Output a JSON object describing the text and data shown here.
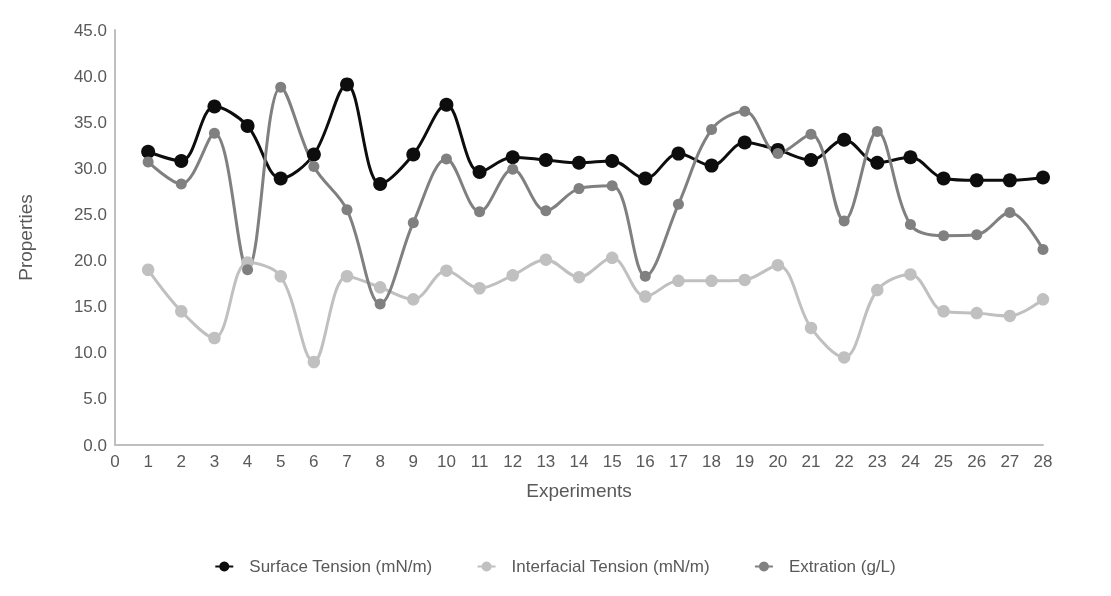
{
  "chart_data": {
    "type": "line",
    "xlabel": "Experiments",
    "ylabel": "Properties",
    "x": [
      1,
      2,
      3,
      4,
      5,
      6,
      7,
      8,
      9,
      10,
      11,
      12,
      13,
      14,
      15,
      16,
      17,
      18,
      19,
      20,
      21,
      22,
      23,
      24,
      25,
      26,
      27,
      28
    ],
    "series": [
      {
        "name": "Surface Tension (mN/m)",
        "color": "#0d0d0d",
        "values": [
          31.8,
          30.8,
          36.7,
          34.6,
          28.9,
          31.5,
          39.1,
          28.3,
          31.5,
          36.9,
          29.6,
          31.2,
          30.9,
          30.6,
          30.8,
          28.9,
          31.6,
          30.3,
          32.8,
          32.0,
          30.9,
          33.1,
          30.6,
          31.2,
          28.9,
          28.7,
          28.7,
          29.0
        ]
      },
      {
        "name": "Interfacial Tension (mN/m)",
        "color": "#c0c0c0",
        "values": [
          19.0,
          14.5,
          11.6,
          19.8,
          18.3,
          9.0,
          18.3,
          17.1,
          15.8,
          18.9,
          17.0,
          18.4,
          20.1,
          18.2,
          20.3,
          16.1,
          17.8,
          17.8,
          17.9,
          19.5,
          12.7,
          9.5,
          16.8,
          18.5,
          14.5,
          14.3,
          14.0,
          15.8
        ]
      },
      {
        "name": "Extration (g/L)",
        "color": "#808080",
        "values": [
          30.7,
          28.3,
          33.8,
          19.0,
          38.8,
          30.2,
          25.5,
          15.3,
          24.1,
          31.0,
          25.3,
          29.9,
          25.4,
          27.8,
          28.1,
          18.3,
          26.1,
          34.2,
          36.2,
          31.6,
          33.7,
          24.3,
          34.0,
          23.9,
          22.7,
          22.8,
          25.2,
          21.2
        ]
      }
    ],
    "xlim": [
      0,
      28
    ],
    "xticks": [
      0,
      1,
      2,
      3,
      4,
      5,
      6,
      7,
      8,
      9,
      10,
      11,
      12,
      13,
      14,
      15,
      16,
      17,
      18,
      19,
      20,
      21,
      22,
      23,
      24,
      25,
      26,
      27,
      28
    ],
    "ylim": [
      0,
      45
    ],
    "yticks": [
      {
        "value": 0,
        "label": "0.0"
      },
      {
        "value": 5,
        "label": "5.0"
      },
      {
        "value": 10,
        "label": "10.0"
      },
      {
        "value": 15,
        "label": "15.0"
      },
      {
        "value": 20,
        "label": "20.0"
      },
      {
        "value": 25,
        "label": "25.0"
      },
      {
        "value": 30,
        "label": "30.0"
      },
      {
        "value": 35,
        "label": "35.0"
      },
      {
        "value": 40,
        "label": "40.0"
      },
      {
        "value": 45,
        "label": "45.0"
      }
    ],
    "grid": false,
    "legend": "bottom",
    "marker": "circle",
    "line_style": "solid"
  }
}
